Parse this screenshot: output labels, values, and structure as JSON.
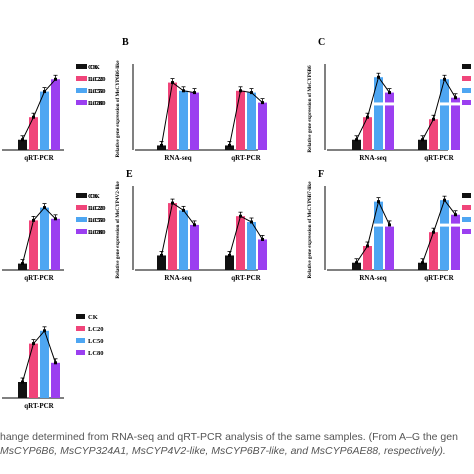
{
  "colors": {
    "CK": "#111111",
    "LC20": "#f0457a",
    "LC50": "#4ea6f2",
    "LC80": "#9b3ff0",
    "line": "#000000",
    "axis": "#000000"
  },
  "legend_labels": [
    "CK",
    "LC20",
    "LC50",
    "LC80"
  ],
  "chart_data": [
    {
      "panel": "A",
      "type": "bar",
      "panel_label": "",
      "ylabel": "",
      "categories": [
        "qRT-PCR"
      ],
      "series": [
        {
          "name": "CK",
          "values": [
            1.0
          ]
        },
        {
          "name": "LC20",
          "values": [
            3.2
          ]
        },
        {
          "name": "LC50",
          "values": [
            5.7
          ]
        },
        {
          "name": "LC80",
          "values": [
            6.9
          ]
        }
      ],
      "ylim": [
        0,
        8
      ],
      "legend": "right",
      "trend_line": true,
      "partial": "left-cut"
    },
    {
      "panel": "B",
      "type": "bar",
      "panel_label": "B",
      "ylabel": "Relative gene expression of MsCYP6B6-like",
      "categories": [
        "RNA-seq",
        "qRT-PCR"
      ],
      "series": [
        {
          "name": "CK",
          "values": [
            1.0,
            1.0
          ]
        },
        {
          "name": "LC20",
          "values": [
            14.8,
            13.0
          ]
        },
        {
          "name": "LC50",
          "values": [
            13.0,
            12.6
          ]
        },
        {
          "name": "LC80",
          "values": [
            12.6,
            10.4
          ]
        }
      ],
      "ylim": [
        0,
        18
      ],
      "legend": "left",
      "trend_line": true
    },
    {
      "panel": "C",
      "type": "bar",
      "panel_label": "C",
      "ylabel": "Relative gene expression of MsCYP6B6",
      "categories": [
        "RNA-seq",
        "qRT-PCR"
      ],
      "series": [
        {
          "name": "CK",
          "values": [
            1.0,
            1.0
          ]
        },
        {
          "name": "LC20",
          "values": [
            3.2,
            3.0
          ]
        },
        {
          "name": "LC50",
          "values": [
            7.1,
            6.9
          ]
        },
        {
          "name": "LC80",
          "values": [
            5.6,
            5.1
          ]
        }
      ],
      "ylim": [
        0,
        8
      ],
      "legend": "right",
      "trend_line": true,
      "broken_axis": true
    },
    {
      "panel": "D",
      "type": "bar",
      "panel_label": "",
      "ylabel": "",
      "categories": [
        "qRT-PCR"
      ],
      "series": [
        {
          "name": "CK",
          "values": [
            0.4
          ]
        },
        {
          "name": "LC20",
          "values": [
            3.1
          ]
        },
        {
          "name": "LC50",
          "values": [
            3.9
          ]
        },
        {
          "name": "LC80",
          "values": [
            3.2
          ]
        }
      ],
      "ylim": [
        0,
        5
      ],
      "legend": "right",
      "trend_line": true,
      "partial": "left-cut"
    },
    {
      "panel": "E",
      "type": "bar",
      "panel_label": "E",
      "ylabel": "Relative gene expression of MsCYP4V2-like",
      "categories": [
        "RNA-seq",
        "qRT-PCR"
      ],
      "series": [
        {
          "name": "CK",
          "values": [
            1.0,
            1.0
          ]
        },
        {
          "name": "LC20",
          "values": [
            4.6,
            3.7
          ]
        },
        {
          "name": "LC50",
          "values": [
            4.1,
            3.3
          ]
        },
        {
          "name": "LC80",
          "values": [
            3.1,
            2.1
          ]
        }
      ],
      "ylim": [
        0,
        5.5
      ],
      "legend": "left",
      "trend_line": true
    },
    {
      "panel": "F",
      "type": "bar",
      "panel_label": "F",
      "ylabel": "Relative gene expression of MsCYP6B7-like",
      "categories": [
        "RNA-seq",
        "qRT-PCR"
      ],
      "series": [
        {
          "name": "CK",
          "values": [
            1.0,
            1.0
          ]
        },
        {
          "name": "LC20",
          "values": [
            3.3,
            5.2
          ]
        },
        {
          "name": "LC50",
          "values": [
            9.4,
            9.6
          ]
        },
        {
          "name": "LC80",
          "values": [
            6.2,
            7.6
          ]
        }
      ],
      "ylim": [
        0,
        11
      ],
      "legend": "right",
      "trend_line": true,
      "broken_axis": true
    },
    {
      "panel": "G",
      "type": "bar",
      "panel_label": "",
      "ylabel": "",
      "categories": [
        "qRT-PCR"
      ],
      "series": [
        {
          "name": "CK",
          "values": [
            1.0
          ]
        },
        {
          "name": "LC20",
          "values": [
            3.4
          ]
        },
        {
          "name": "LC50",
          "values": [
            4.2
          ]
        },
        {
          "name": "LC80",
          "values": [
            2.2
          ]
        }
      ],
      "ylim": [
        0,
        5
      ],
      "legend": "right",
      "trend_line": true,
      "partial": "left-cut"
    }
  ],
  "caption": {
    "line1": "hange determined from RNA-seq and qRT-PCR analysis of the same samples. (From A–G the gen",
    "line2": "MsCYP6B6, MsCYP324A1, MsCYP4V2-like, MsCYP6B7-like, and MsCYP6AE88, respectively)."
  }
}
